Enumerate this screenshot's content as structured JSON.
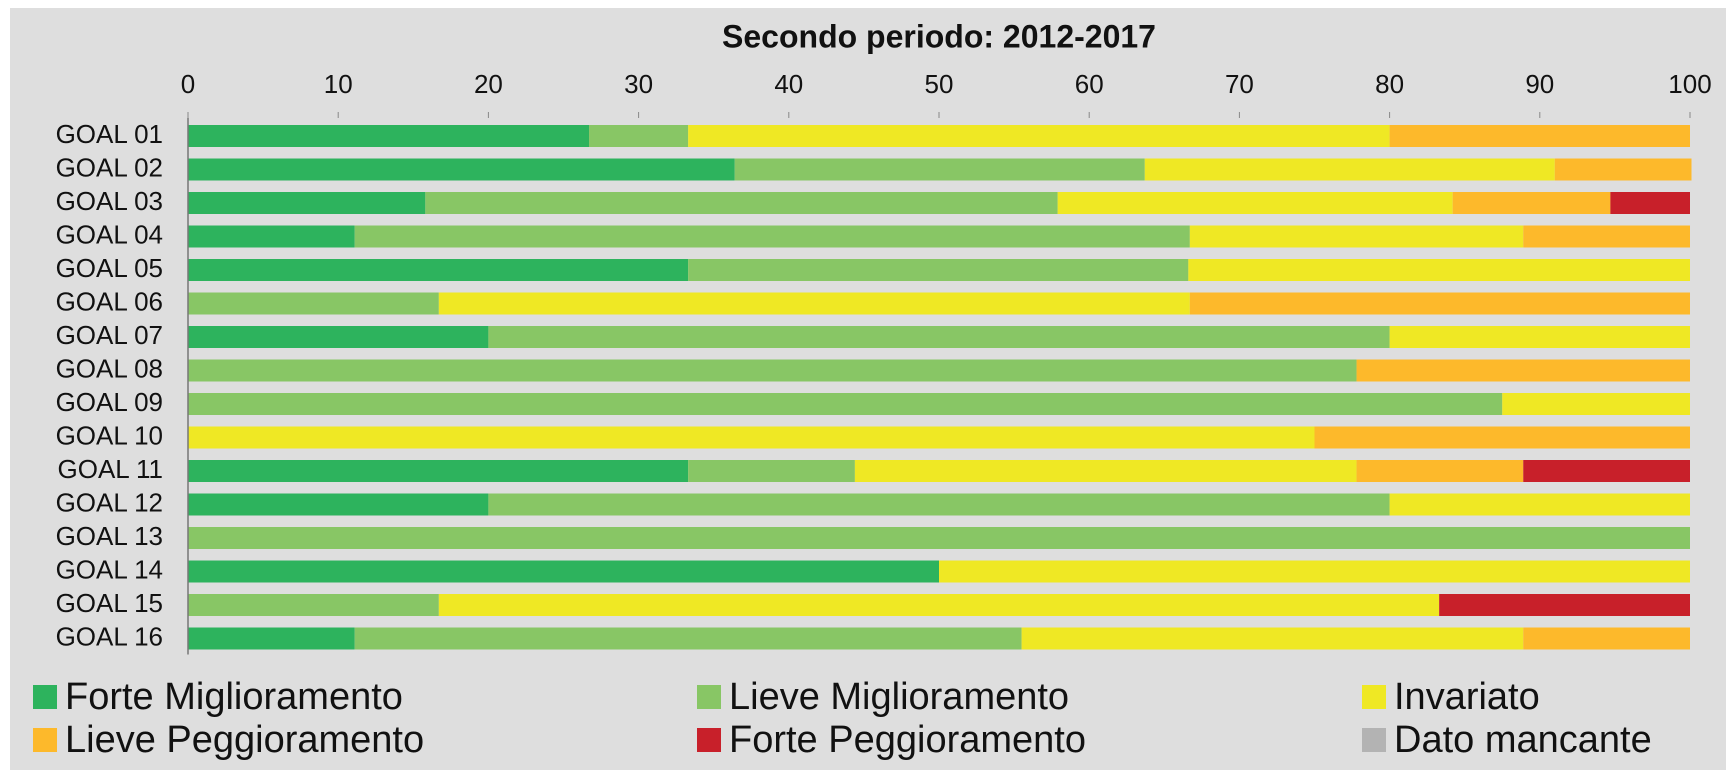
{
  "chart_data": {
    "type": "stacked-barh",
    "title": "Secondo periodo: 2012-2017",
    "categories": [
      "GOAL 01",
      "GOAL 02",
      "GOAL 03",
      "GOAL 04",
      "GOAL 05",
      "GOAL 06",
      "GOAL 07",
      "GOAL 08",
      "GOAL 09",
      "GOAL 10",
      "GOAL 11",
      "GOAL 12",
      "GOAL 13",
      "GOAL 14",
      "GOAL 15",
      "GOAL 16"
    ],
    "series": [
      {
        "name": "Forte Miglioramento",
        "color": "#2db35d",
        "values": [
          26.7,
          36.4,
          15.8,
          11.1,
          33.3,
          0,
          20,
          0,
          0,
          0,
          33.3,
          20,
          0,
          50,
          0,
          11.1
        ]
      },
      {
        "name": "Lieve Miglioramento",
        "color": "#88c665",
        "values": [
          6.6,
          27.3,
          42.1,
          55.6,
          33.3,
          16.7,
          60,
          77.8,
          87.5,
          0,
          11.1,
          60,
          100,
          0,
          16.7,
          44.4
        ]
      },
      {
        "name": "Invariato",
        "color": "#efe824",
        "values": [
          46.7,
          27.3,
          26.3,
          22.2,
          33.4,
          50,
          20,
          0,
          12.5,
          75,
          33.4,
          20,
          0,
          50,
          66.6,
          33.4
        ]
      },
      {
        "name": "Lieve Peggioramento",
        "color": "#fdb92b",
        "values": [
          20,
          9.1,
          10.5,
          11.1,
          0,
          33.3,
          0,
          22.2,
          0,
          25,
          11.1,
          0,
          0,
          0,
          0,
          11.1
        ]
      },
      {
        "name": "Forte Peggioramento",
        "color": "#c8202a",
        "values": [
          0,
          0,
          5.3,
          0,
          0,
          0,
          0,
          0,
          0,
          0,
          11.1,
          0,
          0,
          0,
          16.7,
          0
        ]
      },
      {
        "name": "Dato mancante",
        "color": "#b3b3b3",
        "values": [
          0,
          0,
          0,
          0,
          0,
          0,
          0,
          0,
          0,
          0,
          0,
          0,
          0,
          0,
          0,
          0
        ]
      }
    ],
    "xlim": [
      0,
      100
    ],
    "xticks": [
      0,
      10,
      20,
      30,
      40,
      50,
      60,
      70,
      80,
      90,
      100
    ]
  }
}
